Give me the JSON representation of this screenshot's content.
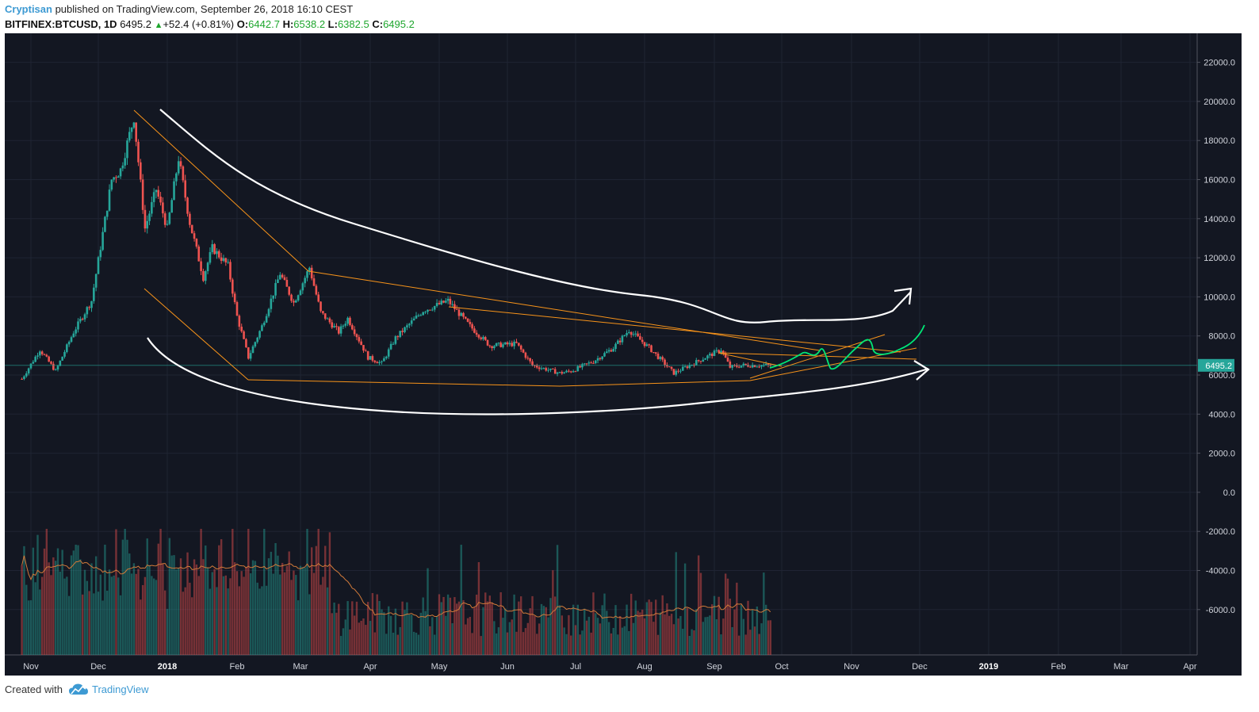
{
  "header": {
    "author": "Cryptisan",
    "published_text": " published on TradingView.com, September 26, 2018 16:10 CEST",
    "symbol": "BITFINEX:BTCUSD, 1D",
    "last": "6495.2",
    "change_arrow": "▲",
    "change": "+52.4 (+0.81%)",
    "o_label": "O:",
    "o_value": "6442.7",
    "h_label": "H:",
    "h_value": "6538.2",
    "l_label": "L:",
    "l_value": "6382.5",
    "c_label": "C:",
    "c_value": "6495.2"
  },
  "footer": {
    "created_with": "Created with",
    "brand": "TradingView"
  },
  "colors": {
    "background": "#131722",
    "up": "#26a69a",
    "down": "#ef5350",
    "orange": "#f7931a",
    "white_curve": "#ffffff",
    "projection": "#00e676",
    "price_label": "#26a69a"
  },
  "chart_data": {
    "type": "candlestick",
    "symbol": "BITFINEX:BTCUSD",
    "interval": "1D",
    "y_ticks": [
      "22000.0",
      "20000.0",
      "18000.0",
      "16000.0",
      "14000.0",
      "12000.0",
      "10000.0",
      "8000.0",
      "6000.0",
      "4000.0",
      "2000.0",
      "0.0",
      "-2000.0",
      "-4000.0",
      "-6000.0"
    ],
    "ylim": [
      -8000,
      23500
    ],
    "x_ticks": [
      "Nov",
      "Dec",
      "2018",
      "Feb",
      "Mar",
      "Apr",
      "May",
      "Jun",
      "Jul",
      "Aug",
      "Sep",
      "Oct",
      "Nov",
      "Dec",
      "2019",
      "Feb",
      "Mar",
      "Apr"
    ],
    "x_ticks_bold": [
      "2018",
      "2019"
    ],
    "last_price_label": "6495.2",
    "last_price": 6495.2,
    "price_path": [
      {
        "date": "2017-10-28",
        "close": 5800
      },
      {
        "date": "2017-11-05",
        "close": 7300
      },
      {
        "date": "2017-11-12",
        "close": 6200
      },
      {
        "date": "2017-11-20",
        "close": 8200
      },
      {
        "date": "2017-11-28",
        "close": 9800
      },
      {
        "date": "2017-12-07",
        "close": 16000
      },
      {
        "date": "2017-12-11",
        "close": 16500
      },
      {
        "date": "2017-12-17",
        "close": 19200
      },
      {
        "date": "2017-12-22",
        "close": 13500
      },
      {
        "date": "2017-12-27",
        "close": 15500
      },
      {
        "date": "2018-01-01",
        "close": 13500
      },
      {
        "date": "2018-01-06",
        "close": 17100
      },
      {
        "date": "2018-01-11",
        "close": 13800
      },
      {
        "date": "2018-01-17",
        "close": 11000
      },
      {
        "date": "2018-01-21",
        "close": 12500
      },
      {
        "date": "2018-01-28",
        "close": 11600
      },
      {
        "date": "2018-02-01",
        "close": 9000
      },
      {
        "date": "2018-02-06",
        "close": 6900
      },
      {
        "date": "2018-02-12",
        "close": 8500
      },
      {
        "date": "2018-02-20",
        "close": 11200
      },
      {
        "date": "2018-02-26",
        "close": 9700
      },
      {
        "date": "2018-03-05",
        "close": 11500
      },
      {
        "date": "2018-03-10",
        "close": 9200
      },
      {
        "date": "2018-03-18",
        "close": 8200
      },
      {
        "date": "2018-03-22",
        "close": 8900
      },
      {
        "date": "2018-03-31",
        "close": 6900
      },
      {
        "date": "2018-04-06",
        "close": 6600
      },
      {
        "date": "2018-04-12",
        "close": 7900
      },
      {
        "date": "2018-04-24",
        "close": 9300
      },
      {
        "date": "2018-05-05",
        "close": 9800
      },
      {
        "date": "2018-05-15",
        "close": 8500
      },
      {
        "date": "2018-05-24",
        "close": 7500
      },
      {
        "date": "2018-06-05",
        "close": 7600
      },
      {
        "date": "2018-06-12",
        "close": 6500
      },
      {
        "date": "2018-06-24",
        "close": 6100
      },
      {
        "date": "2018-06-29",
        "close": 6200
      },
      {
        "date": "2018-07-09",
        "close": 6700
      },
      {
        "date": "2018-07-18",
        "close": 7400
      },
      {
        "date": "2018-07-25",
        "close": 8300
      },
      {
        "date": "2018-08-03",
        "close": 7400
      },
      {
        "date": "2018-08-14",
        "close": 6100
      },
      {
        "date": "2018-08-21",
        "close": 6500
      },
      {
        "date": "2018-09-04",
        "close": 7300
      },
      {
        "date": "2018-09-08",
        "close": 6400
      },
      {
        "date": "2018-09-14",
        "close": 6500
      },
      {
        "date": "2018-09-20",
        "close": 6500
      },
      {
        "date": "2018-09-26",
        "close": 6495.2
      }
    ]
  }
}
